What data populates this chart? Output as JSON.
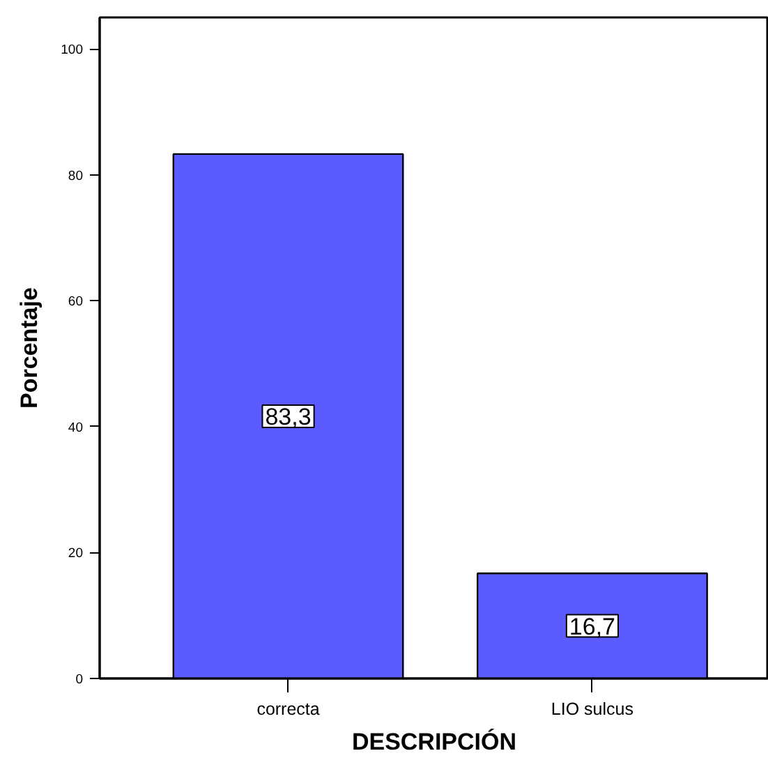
{
  "chart_data": {
    "type": "bar",
    "xlabel": "DESCRIPCIÓN",
    "ylabel": "Porcentaje",
    "categories": [
      "correcta",
      "LIO sulcus"
    ],
    "values": [
      83.3,
      16.7
    ],
    "value_labels": [
      "83,3",
      "16,7"
    ],
    "color": "#5b5bff",
    "ylim": [
      0,
      105
    ],
    "yticks": [
      0,
      20,
      40,
      60,
      80,
      100
    ],
    "grid": false
  }
}
